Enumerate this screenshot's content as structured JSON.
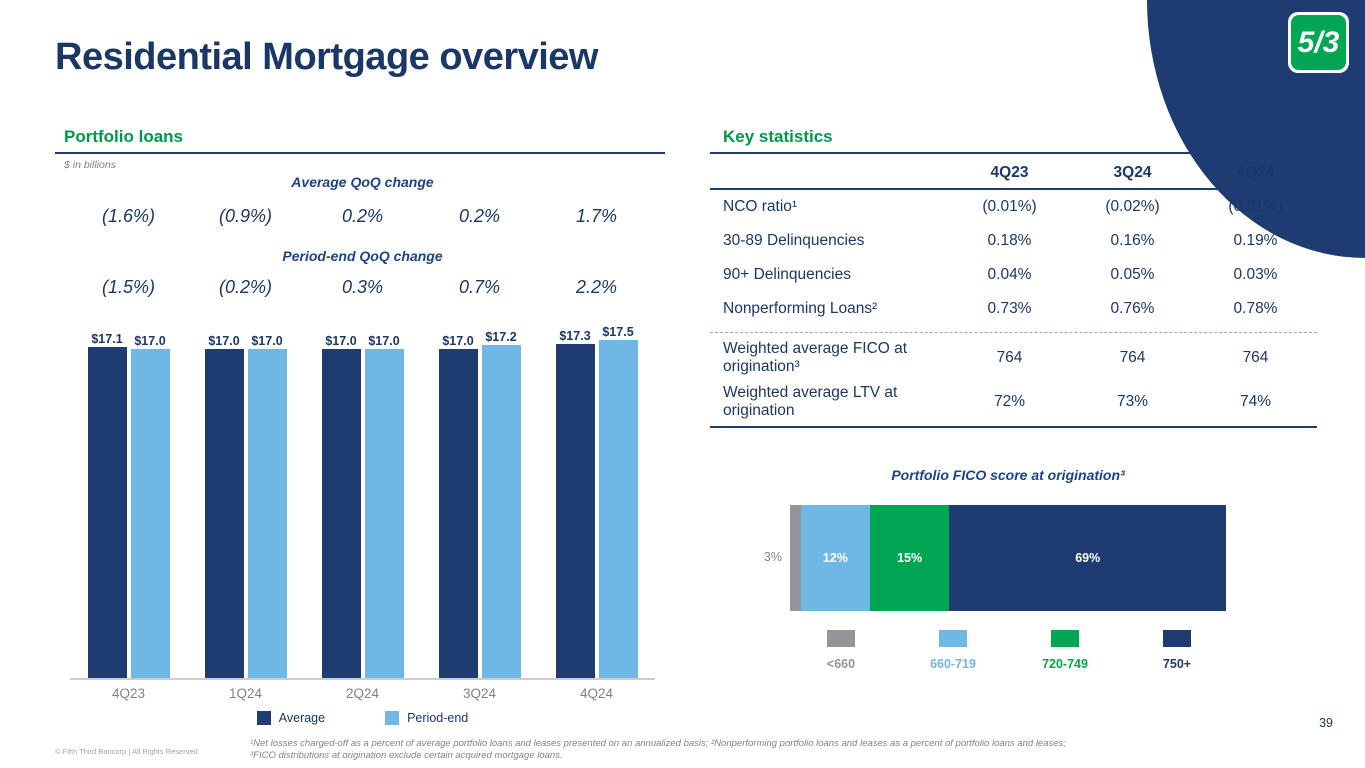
{
  "slide": {
    "title": "Residential Mortgage overview",
    "page_number": "39",
    "copyright": "© Fifth Third Bancorp | All Rights Reserved",
    "footnote": "¹Net losses charged-off as a percent of average portfolio loans and leases presented on an annualized basis; ²Nonperforming portfolio loans and leases as a percent of portfolio loans and leases; ³FICO distributions at origination exclude certain acquired mortgage loans.",
    "logo_text": "5/3"
  },
  "portfolio_loans": {
    "heading": "Portfolio loans",
    "units_note": "$ in billions",
    "avg_change_label": "Average QoQ change",
    "period_end_change_label": "Period-end QoQ change",
    "legend": [
      {
        "label": "Average",
        "color": "#1e3c72"
      },
      {
        "label": "Period-end",
        "color": "#6fb7e5"
      }
    ]
  },
  "key_statistics": {
    "heading": "Key statistics",
    "columns": [
      "4Q23",
      "3Q24",
      "4Q24"
    ],
    "rows": [
      {
        "label": "NCO ratio¹",
        "values": [
          "(0.01%)",
          "(0.02%)",
          "(0.01%)"
        ]
      },
      {
        "label": "30-89 Delinquencies",
        "values": [
          "0.18%",
          "0.16%",
          "0.19%"
        ]
      },
      {
        "label": "90+ Delinquencies",
        "values": [
          "0.04%",
          "0.05%",
          "0.03%"
        ]
      },
      {
        "label": "Nonperforming Loans²",
        "values": [
          "0.73%",
          "0.76%",
          "0.78%"
        ]
      },
      {
        "label": "Weighted average FICO at origination³",
        "values": [
          "764",
          "764",
          "764"
        ]
      },
      {
        "label": "Weighted average LTV at origination",
        "values": [
          "72%",
          "73%",
          "74%"
        ]
      }
    ]
  },
  "chart_data": [
    {
      "type": "bar",
      "title": "Portfolio loans",
      "subtitle": "$ in billions",
      "categories": [
        "4Q23",
        "1Q24",
        "2Q24",
        "3Q24",
        "4Q24"
      ],
      "series": [
        {
          "name": "Average",
          "values": [
            17.1,
            17.0,
            17.0,
            17.0,
            17.3
          ],
          "labels": [
            "$17.1",
            "$17.0",
            "$17.0",
            "$17.0",
            "$17.3"
          ],
          "color": "#1e3c72"
        },
        {
          "name": "Period-end",
          "values": [
            17.0,
            17.0,
            17.0,
            17.2,
            17.5
          ],
          "labels": [
            "$17.0",
            "$17.0",
            "$17.0",
            "$17.2",
            "$17.5"
          ],
          "color": "#6fb7e5"
        }
      ],
      "avg_qoq_change": [
        "(1.6%)",
        "(0.9%)",
        "0.2%",
        "0.2%",
        "1.7%"
      ],
      "period_end_qoq_change": [
        "(1.5%)",
        "(0.2%)",
        "0.3%",
        "0.7%",
        "2.2%"
      ],
      "ylim": [
        0,
        18
      ],
      "grid": false,
      "legend_position": "bottom"
    },
    {
      "type": "bar",
      "variant": "horizontal-stacked",
      "title": "Portfolio FICO score at origination³",
      "categories": [
        "<660",
        "660-719",
        "720-749",
        "750+"
      ],
      "values": [
        3,
        12,
        15,
        69
      ],
      "value_labels": [
        "3%",
        "12%",
        "15%",
        "69%"
      ],
      "colors": [
        "#939598",
        "#6fb7e5",
        "#00a651",
        "#1e3c72"
      ],
      "legend_position": "bottom"
    }
  ]
}
